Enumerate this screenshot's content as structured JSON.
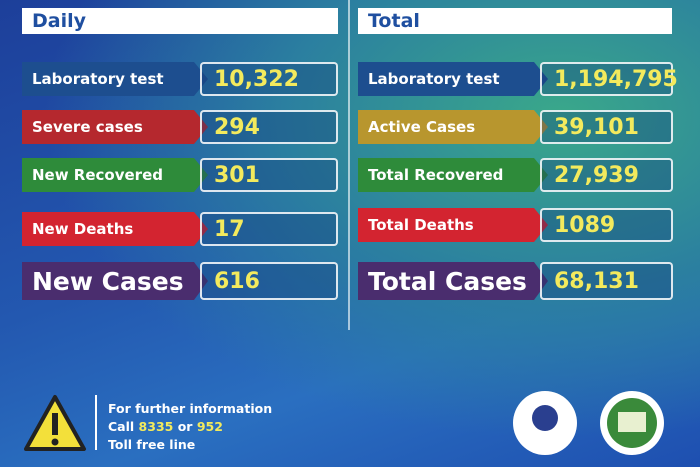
{
  "daily": {
    "header": "Daily",
    "rows": [
      {
        "label": "Laboratory test",
        "value": "10,322"
      },
      {
        "label": "Severe cases",
        "value": "294"
      },
      {
        "label": "New Recovered",
        "value": "301"
      },
      {
        "label": "New Deaths",
        "value": "17"
      },
      {
        "label": "New Cases",
        "value": "616"
      }
    ]
  },
  "total": {
    "header": "Total",
    "rows": [
      {
        "label": "Laboratory test",
        "value": "1,194,795"
      },
      {
        "label": "Active Cases",
        "value": "39,101"
      },
      {
        "label": "Total Recovered",
        "value": "27,939"
      },
      {
        "label": "Total Deaths",
        "value": "1089"
      },
      {
        "label": "Total Cases",
        "value": "68,131"
      }
    ]
  },
  "footer": {
    "line1": "For further information",
    "call": "Call",
    "number1": "8335",
    "or": "or",
    "number2": "952",
    "line3": "Toll free line"
  }
}
